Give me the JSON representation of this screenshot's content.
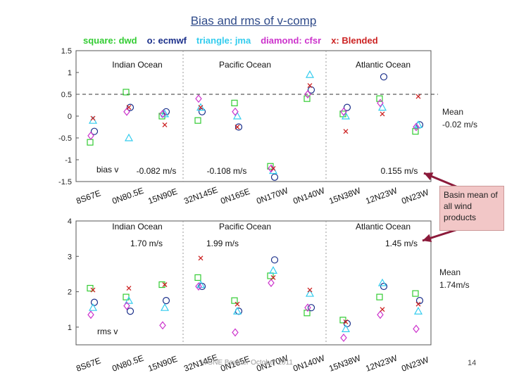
{
  "page": {
    "title": "Bias and rms of v-comp",
    "footer": "WGNE Boulder October 2011",
    "page_number": "14"
  },
  "legend": {
    "items": [
      {
        "label": "square: dwd",
        "color": "#33cc33",
        "marker": "square"
      },
      {
        "label": "o: ecmwf",
        "color": "#1a2f8a",
        "marker": "circle"
      },
      {
        "label": "triangle: jma",
        "color": "#33ccee",
        "marker": "triangle"
      },
      {
        "label": "diamond: cfsr",
        "color": "#cc33cc",
        "marker": "diamond"
      },
      {
        "label": "x: Blended",
        "color": "#cc2222",
        "marker": "x"
      }
    ]
  },
  "annotations": {
    "bias_mean": "Mean\n-0.02 m/s",
    "basin_box": "Basin mean of all wind products",
    "rms_mean": "Mean\n1.74m/s"
  },
  "chart_data": [
    {
      "type": "scatter",
      "panel_label": "bias v",
      "ylim": [
        -1.5,
        1.5
      ],
      "yticks": [
        -1.5,
        -1,
        -0.5,
        0,
        0.5,
        1,
        1.5
      ],
      "reference_line": 0.5,
      "categories": [
        "8S67E",
        "0N80.5E",
        "15N90E",
        "32N145E",
        "0N165E",
        "0N170W",
        "0N140W",
        "15N38W",
        "12N23W",
        "0N23W"
      ],
      "regions": [
        "Indian Ocean",
        "Pacific Ocean",
        "Atlantic Ocean"
      ],
      "basin_means": [
        "-0.082 m/s",
        "-0.108 m/s",
        "0.155 m/s"
      ],
      "series": [
        {
          "name": "square: dwd",
          "marker": "square",
          "color": "#33cc33",
          "values": [
            -0.6,
            0.55,
            0,
            -0.1,
            0.3,
            -1.15,
            0.4,
            0.05,
            0.4,
            -0.35
          ]
        },
        {
          "name": "o: ecmwf",
          "marker": "circle",
          "color": "#1a2f8a",
          "values": [
            -0.35,
            0.2,
            0.1,
            0.1,
            -0.25,
            -1.4,
            0.6,
            0.2,
            0.9,
            -0.2
          ]
        },
        {
          "name": "triangle: jma",
          "marker": "triangle",
          "color": "#33ccee",
          "values": [
            -0.1,
            -0.5,
            0.05,
            0.2,
            0,
            -1.25,
            0.95,
            0,
            0.2,
            -0.2
          ]
        },
        {
          "name": "diamond: cfsr",
          "marker": "diamond",
          "color": "#cc33cc",
          "values": [
            -0.45,
            0.1,
            0.05,
            0.4,
            0.1,
            -1.2,
            0.5,
            0.1,
            0.3,
            -0.25
          ]
        },
        {
          "name": "x: Blended",
          "marker": "x",
          "color": "#cc2222",
          "values": [
            -0.05,
            0.2,
            -0.2,
            0.2,
            -0.25,
            -1.2,
            0.7,
            -0.35,
            0.05,
            0.45
          ]
        }
      ]
    },
    {
      "type": "scatter",
      "panel_label": "rms v",
      "ylim": [
        0.5,
        4
      ],
      "yticks": [
        1,
        2,
        3,
        4
      ],
      "categories": [
        "8S67E",
        "0N80.5E",
        "15N90E",
        "32N145E",
        "0N165E",
        "0N170W",
        "0N140W",
        "15N38W",
        "12N23W",
        "0N23W"
      ],
      "regions": [
        "Indian Ocean",
        "Pacific Ocean",
        "Atlantic Ocean"
      ],
      "basin_means": [
        "1.70 m/s",
        "1.99 m/s",
        "1.45 m/s"
      ],
      "series": [
        {
          "name": "square: dwd",
          "marker": "square",
          "color": "#33cc33",
          "values": [
            2.1,
            1.85,
            2.2,
            2.4,
            1.75,
            2.45,
            1.4,
            1.2,
            1.85,
            1.95
          ]
        },
        {
          "name": "o: ecmwf",
          "marker": "circle",
          "color": "#1a2f8a",
          "values": [
            1.7,
            1.45,
            1.75,
            2.15,
            1.45,
            2.9,
            1.55,
            1.1,
            2.15,
            1.75
          ]
        },
        {
          "name": "triangle: jma",
          "marker": "triangle",
          "color": "#33ccee",
          "values": [
            1.55,
            1.75,
            1.55,
            2.2,
            1.45,
            2.6,
            1.95,
            0.95,
            2.25,
            1.45
          ]
        },
        {
          "name": "diamond: cfsr",
          "marker": "diamond",
          "color": "#cc33cc",
          "values": [
            1.35,
            1.6,
            1.05,
            2.15,
            0.85,
            2.25,
            1.55,
            0.7,
            1.35,
            0.95
          ]
        },
        {
          "name": "x: Blended",
          "marker": "x",
          "color": "#cc2222",
          "values": [
            2.05,
            2.1,
            2.2,
            2.95,
            1.65,
            2.4,
            2.05,
            1.15,
            1.5,
            1.65
          ]
        }
      ]
    }
  ]
}
